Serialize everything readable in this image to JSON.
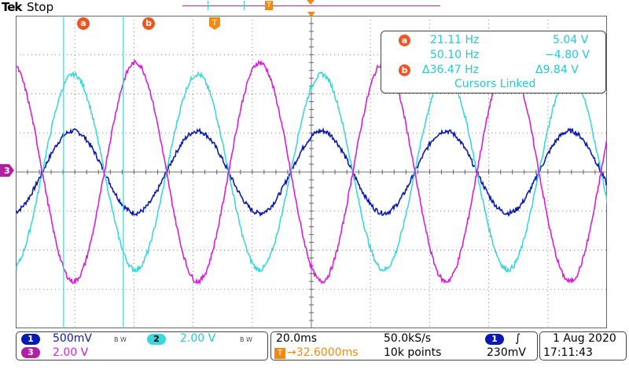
{
  "header": {
    "brand": "Tek",
    "status": "Stop"
  },
  "top_marks": {
    "trigger_pos_label": "T"
  },
  "cursor_labels": {
    "a": "a",
    "b": "b",
    "trigger": "T"
  },
  "cursor_readout": {
    "row1_badge": "a",
    "row1_freq": "21.11 Hz",
    "row1_volt": "5.04 V",
    "row2_freq": "50.10 Hz",
    "row2_volt": "−4.80 V",
    "row3_badge": "b",
    "row3_freq": "Δ36.47 Hz",
    "row3_volt": "Δ9.84 V",
    "linked": "Cursors Linked"
  },
  "channel_marker": "3",
  "channel_panel": {
    "ch1_label": "1",
    "ch1_scale": "500mV",
    "ch1_bw": "B W",
    "ch2_label": "2",
    "ch2_scale": "2.00 V",
    "ch2_bw": "B W",
    "ch3_label": "3",
    "ch3_scale": "2.00 V"
  },
  "timebase_panel": {
    "time_div": "20.0ms",
    "sample_rate": "50.0kS/s",
    "trig_delay": "→32.6000ms",
    "record_length": "10k points"
  },
  "trigger_panel": {
    "source": "1",
    "slope": "∫",
    "level": "230mV"
  },
  "datetime_panel": {
    "date": "1 Aug 2020",
    "time": "17:11:43"
  },
  "colors": {
    "ch1": "#0a1ab0",
    "ch2": "#3bd7dd",
    "ch3": "#d81ed8",
    "cursor": "#3bd7dd",
    "badge": "#ee5522",
    "trigger": "#f08a10",
    "grid": "#666666"
  },
  "chart_data": {
    "type": "line",
    "series": [
      {
        "name": "1",
        "color": "#0a1ab0",
        "amplitude_div": 1.05,
        "period_div": 2.1,
        "phase_div": 0.45,
        "offset_div": 0
      },
      {
        "name": "2",
        "color": "#3bd7dd",
        "amplitude_div": 2.5,
        "period_div": 2.1,
        "phase_div": 0.45,
        "offset_div": 0
      },
      {
        "name": "3",
        "color": "#d81ed8",
        "amplitude_div": 2.8,
        "period_div": 2.1,
        "phase_div": 1.5,
        "offset_div": 0
      }
    ],
    "cursors_x_div": [
      0.81,
      1.82
    ],
    "xlim_div": [
      0,
      10
    ],
    "ylim_div": [
      -4,
      4
    ],
    "grid": true
  }
}
